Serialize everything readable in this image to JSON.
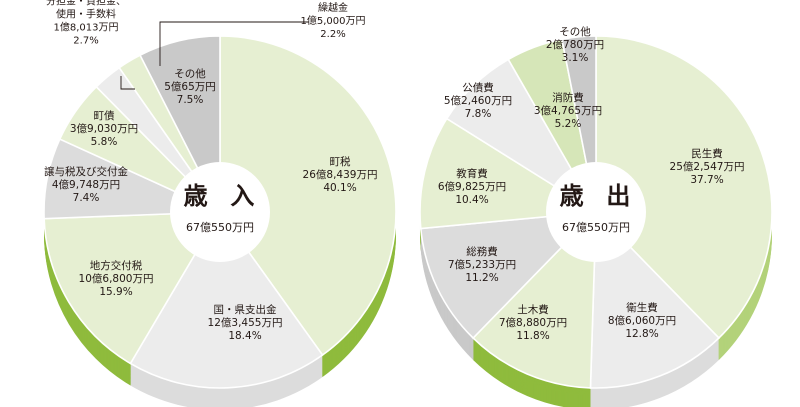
{
  "colors": {
    "green_light": "#e6efd2",
    "green_mid": "#d6e6b8",
    "green_accent": "#8fbb3d",
    "green_bright": "#b3d27a",
    "gray_dark": "#c9c9c9",
    "gray_mid": "#dcdcdc",
    "gray_light": "#ececec",
    "white": "#ffffff",
    "text": "#231815"
  },
  "chart_data": [
    {
      "type": "pie",
      "title": "歳入",
      "total": "67億550万円",
      "slices": [
        {
          "id": "rev-0",
          "lines": [
            "町税",
            "26億8,439万円",
            "40.1%"
          ],
          "value": 40.1,
          "color": "green_light",
          "side": "green_accent"
        },
        {
          "id": "rev-1",
          "lines": [
            "国・県支出金",
            "12億3,455万円",
            "18.4%"
          ],
          "value": 18.4,
          "color": "gray_light",
          "side": "gray_mid"
        },
        {
          "id": "rev-2",
          "lines": [
            "地方交付税",
            "10億6,800万円",
            "15.9%"
          ],
          "value": 15.9,
          "color": "green_light",
          "side": "green_accent"
        },
        {
          "id": "rev-3",
          "lines": [
            "譲与税及び交付金",
            "4億9,748万円",
            "7.4%"
          ],
          "value": 7.4,
          "color": "gray_mid",
          "side": "gray_dark"
        },
        {
          "id": "rev-4",
          "lines": [
            "町債",
            "3億9,030万円",
            "5.8%"
          ],
          "value": 5.8,
          "color": "green_light",
          "side": "green_accent"
        },
        {
          "id": "rev-5",
          "lines": [
            "分担金・負担金、",
            "使用・手数料",
            "1億8,013万円",
            "2.7%"
          ],
          "value": 2.7,
          "color": "gray_light",
          "side": "gray_mid",
          "callout": true
        },
        {
          "id": "rev-6",
          "lines": [
            "繰越金",
            "1億5,000万円",
            "2.2%"
          ],
          "value": 2.2,
          "color": "green_light",
          "side": "green_accent",
          "callout": true
        },
        {
          "id": "rev-7",
          "lines": [
            "その他",
            "5億65万円",
            "7.5%"
          ],
          "value": 7.5,
          "color": "gray_dark",
          "side": "gray_dark"
        }
      ]
    },
    {
      "type": "pie",
      "title": "歳出",
      "total": "67億550万円",
      "slices": [
        {
          "id": "exp-0",
          "lines": [
            "民生費",
            "25億2,547万円",
            "37.7%"
          ],
          "value": 37.7,
          "color": "green_light",
          "side": "green_bright"
        },
        {
          "id": "exp-1",
          "lines": [
            "衛生費",
            "8億6,060万円",
            "12.8%"
          ],
          "value": 12.8,
          "color": "gray_light",
          "side": "gray_mid"
        },
        {
          "id": "exp-2",
          "lines": [
            "土木費",
            "7億8,880万円",
            "11.8%"
          ],
          "value": 11.8,
          "color": "green_light",
          "side": "green_accent"
        },
        {
          "id": "exp-3",
          "lines": [
            "総務費",
            "7億5,233万円",
            "11.2%"
          ],
          "value": 11.2,
          "color": "gray_mid",
          "side": "gray_dark"
        },
        {
          "id": "exp-4",
          "lines": [
            "教育費",
            "6億9,825万円",
            "10.4%"
          ],
          "value": 10.4,
          "color": "green_light",
          "side": "green_accent"
        },
        {
          "id": "exp-5",
          "lines": [
            "公債費",
            "5億2,460万円",
            "7.8%"
          ],
          "value": 7.8,
          "color": "gray_light",
          "side": "gray_mid"
        },
        {
          "id": "exp-6",
          "lines": [
            "消防費",
            "3億4,765万円",
            "5.2%"
          ],
          "value": 5.2,
          "color": "green_mid",
          "side": "green_accent"
        },
        {
          "id": "exp-7",
          "lines": [
            "その他",
            "2億780万円",
            "3.1%"
          ],
          "value": 3.1,
          "color": "gray_dark",
          "side": "gray_dark"
        }
      ]
    }
  ]
}
